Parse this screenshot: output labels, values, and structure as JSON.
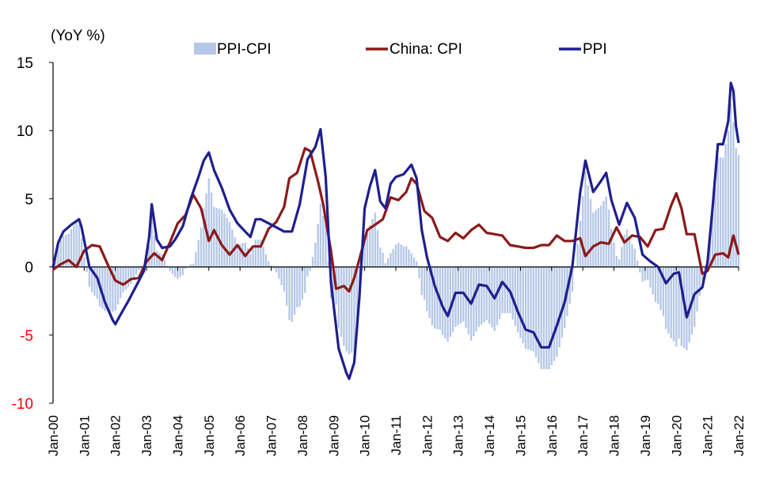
{
  "chart_data": {
    "type": "line",
    "unit_label": "(YoY %)",
    "x_start": "2000-01",
    "x_end": "2022-01",
    "ylim": [
      -10,
      15
    ],
    "y_ticks": [
      "15",
      "10",
      "5",
      "0",
      "-5",
      "-10"
    ],
    "y_tick_values": [
      15,
      10,
      5,
      0,
      -5,
      -10
    ],
    "negative_tick_color": "#ff0000",
    "x_ticks": [
      "Jan-00",
      "Jan-01",
      "Jan-02",
      "Jan-03",
      "Jan-04",
      "Jan-05",
      "Jan-06",
      "Jan-07",
      "Jan-08",
      "Jan-09",
      "Jan-10",
      "Jan-11",
      "Jan-12",
      "Jan-13",
      "Jan-14",
      "Jan-15",
      "Jan-16",
      "Jan-17",
      "Jan-18",
      "Jan-19",
      "Jan-20",
      "Jan-21",
      "Jan-22"
    ],
    "legend": [
      {
        "label": "PPI-CPI",
        "kind": "bar",
        "color": "#b4c7e7"
      },
      {
        "label": "China: CPI",
        "kind": "line",
        "color": "#8b1a1a"
      },
      {
        "label": "PPI",
        "kind": "line",
        "color": "#1f1f8f"
      }
    ],
    "series": [
      {
        "name": "PPI",
        "color": "#1f1f8f",
        "points": [
          [
            "2000-01",
            0
          ],
          [
            "2000-03",
            1.8
          ],
          [
            "2000-05",
            2.6
          ],
          [
            "2000-08",
            3.1
          ],
          [
            "2000-11",
            3.5
          ],
          [
            "2000-12",
            2.9
          ],
          [
            "2001-03",
            0
          ],
          [
            "2001-06",
            -0.8
          ],
          [
            "2001-09",
            -2.6
          ],
          [
            "2001-12",
            -3.9
          ],
          [
            "2002-01",
            -4.2
          ],
          [
            "2002-03",
            -3.5
          ],
          [
            "2002-06",
            -2.5
          ],
          [
            "2002-09",
            -1.4
          ],
          [
            "2002-12",
            -0.3
          ],
          [
            "2003-02",
            2.2
          ],
          [
            "2003-03",
            4.6
          ],
          [
            "2003-05",
            2.0
          ],
          [
            "2003-07",
            1.4
          ],
          [
            "2003-10",
            1.5
          ],
          [
            "2003-12",
            2.0
          ],
          [
            "2004-03",
            3.0
          ],
          [
            "2004-06",
            5.0
          ],
          [
            "2004-09",
            6.6
          ],
          [
            "2004-11",
            7.8
          ],
          [
            "2005-01",
            8.4
          ],
          [
            "2005-03",
            7.1
          ],
          [
            "2005-06",
            5.8
          ],
          [
            "2005-09",
            4.2
          ],
          [
            "2005-12",
            3.2
          ],
          [
            "2006-03",
            2.6
          ],
          [
            "2006-05",
            2.2
          ],
          [
            "2006-07",
            3.5
          ],
          [
            "2006-09",
            3.5
          ],
          [
            "2006-12",
            3.2
          ],
          [
            "2007-03",
            2.9
          ],
          [
            "2007-06",
            2.6
          ],
          [
            "2007-09",
            2.6
          ],
          [
            "2007-12",
            4.6
          ],
          [
            "2008-03",
            7.9
          ],
          [
            "2008-06",
            8.8
          ],
          [
            "2008-08",
            10.1
          ],
          [
            "2008-10",
            6.6
          ],
          [
            "2008-12",
            -1.1
          ],
          [
            "2009-03",
            -6.0
          ],
          [
            "2009-06",
            -7.8
          ],
          [
            "2009-07",
            -8.2
          ],
          [
            "2009-09",
            -7.0
          ],
          [
            "2009-11",
            -2.1
          ],
          [
            "2010-01",
            4.3
          ],
          [
            "2010-03",
            5.9
          ],
          [
            "2010-05",
            7.1
          ],
          [
            "2010-07",
            4.8
          ],
          [
            "2010-09",
            4.3
          ],
          [
            "2010-11",
            6.1
          ],
          [
            "2011-01",
            6.6
          ],
          [
            "2011-04",
            6.8
          ],
          [
            "2011-07",
            7.5
          ],
          [
            "2011-09",
            6.5
          ],
          [
            "2011-11",
            2.7
          ],
          [
            "2012-01",
            0.7
          ],
          [
            "2012-04",
            -1.4
          ],
          [
            "2012-07",
            -2.9
          ],
          [
            "2012-09",
            -3.6
          ],
          [
            "2012-12",
            -1.9
          ],
          [
            "2013-03",
            -1.9
          ],
          [
            "2013-06",
            -2.7
          ],
          [
            "2013-09",
            -1.3
          ],
          [
            "2013-12",
            -1.4
          ],
          [
            "2014-03",
            -2.3
          ],
          [
            "2014-06",
            -1.1
          ],
          [
            "2014-09",
            -1.8
          ],
          [
            "2014-12",
            -3.3
          ],
          [
            "2015-03",
            -4.6
          ],
          [
            "2015-06",
            -4.8
          ],
          [
            "2015-09",
            -5.9
          ],
          [
            "2015-12",
            -5.9
          ],
          [
            "2016-03",
            -4.3
          ],
          [
            "2016-06",
            -2.6
          ],
          [
            "2016-09",
            0.1
          ],
          [
            "2016-12",
            5.5
          ],
          [
            "2017-02",
            7.8
          ],
          [
            "2017-05",
            5.5
          ],
          [
            "2017-08",
            6.3
          ],
          [
            "2017-10",
            6.9
          ],
          [
            "2017-12",
            4.9
          ],
          [
            "2018-03",
            3.1
          ],
          [
            "2018-06",
            4.7
          ],
          [
            "2018-09",
            3.6
          ],
          [
            "2018-12",
            0.9
          ],
          [
            "2019-03",
            0.4
          ],
          [
            "2019-06",
            0
          ],
          [
            "2019-09",
            -1.2
          ],
          [
            "2019-12",
            -0.5
          ],
          [
            "2020-02",
            -0.4
          ],
          [
            "2020-05",
            -3.7
          ],
          [
            "2020-08",
            -2.0
          ],
          [
            "2020-11",
            -1.5
          ],
          [
            "2021-01",
            0.3
          ],
          [
            "2021-03",
            4.4
          ],
          [
            "2021-05",
            9.0
          ],
          [
            "2021-07",
            9.0
          ],
          [
            "2021-09",
            10.7
          ],
          [
            "2021-10",
            13.5
          ],
          [
            "2021-11",
            12.9
          ],
          [
            "2021-12",
            10.3
          ],
          [
            "2022-01",
            9.1
          ]
        ]
      },
      {
        "name": "China: CPI",
        "color": "#8b1a1a",
        "points": [
          [
            "2000-01",
            -0.2
          ],
          [
            "2000-04",
            0.2
          ],
          [
            "2000-07",
            0.5
          ],
          [
            "2000-10",
            0.0
          ],
          [
            "2001-01",
            1.2
          ],
          [
            "2001-04",
            1.6
          ],
          [
            "2001-07",
            1.5
          ],
          [
            "2001-10",
            0.2
          ],
          [
            "2002-01",
            -1.0
          ],
          [
            "2002-04",
            -1.3
          ],
          [
            "2002-07",
            -0.9
          ],
          [
            "2002-10",
            -0.8
          ],
          [
            "2003-01",
            0.4
          ],
          [
            "2003-04",
            1.0
          ],
          [
            "2003-07",
            0.5
          ],
          [
            "2003-10",
            1.8
          ],
          [
            "2004-01",
            3.2
          ],
          [
            "2004-04",
            3.8
          ],
          [
            "2004-07",
            5.3
          ],
          [
            "2004-10",
            4.3
          ],
          [
            "2005-01",
            1.9
          ],
          [
            "2005-03",
            2.7
          ],
          [
            "2005-06",
            1.6
          ],
          [
            "2005-09",
            0.9
          ],
          [
            "2005-12",
            1.6
          ],
          [
            "2006-03",
            0.8
          ],
          [
            "2006-06",
            1.5
          ],
          [
            "2006-09",
            1.5
          ],
          [
            "2006-12",
            2.8
          ],
          [
            "2007-03",
            3.3
          ],
          [
            "2007-06",
            4.4
          ],
          [
            "2007-08",
            6.5
          ],
          [
            "2007-11",
            6.9
          ],
          [
            "2008-02",
            8.7
          ],
          [
            "2008-04",
            8.5
          ],
          [
            "2008-07",
            6.3
          ],
          [
            "2008-09",
            4.6
          ],
          [
            "2008-12",
            1.2
          ],
          [
            "2009-02",
            -1.6
          ],
          [
            "2009-05",
            -1.4
          ],
          [
            "2009-07",
            -1.8
          ],
          [
            "2009-09",
            -0.8
          ],
          [
            "2009-11",
            0.6
          ],
          [
            "2010-02",
            2.7
          ],
          [
            "2010-05",
            3.1
          ],
          [
            "2010-08",
            3.5
          ],
          [
            "2010-11",
            5.1
          ],
          [
            "2011-02",
            4.9
          ],
          [
            "2011-05",
            5.5
          ],
          [
            "2011-07",
            6.5
          ],
          [
            "2011-09",
            6.1
          ],
          [
            "2011-12",
            4.1
          ],
          [
            "2012-03",
            3.6
          ],
          [
            "2012-06",
            2.2
          ],
          [
            "2012-09",
            1.9
          ],
          [
            "2012-12",
            2.5
          ],
          [
            "2013-03",
            2.1
          ],
          [
            "2013-06",
            2.7
          ],
          [
            "2013-09",
            3.1
          ],
          [
            "2013-12",
            2.5
          ],
          [
            "2014-03",
            2.4
          ],
          [
            "2014-06",
            2.3
          ],
          [
            "2014-09",
            1.6
          ],
          [
            "2014-12",
            1.5
          ],
          [
            "2015-03",
            1.4
          ],
          [
            "2015-06",
            1.4
          ],
          [
            "2015-09",
            1.6
          ],
          [
            "2015-12",
            1.6
          ],
          [
            "2016-03",
            2.3
          ],
          [
            "2016-06",
            1.9
          ],
          [
            "2016-09",
            1.9
          ],
          [
            "2016-12",
            2.1
          ],
          [
            "2017-02",
            0.8
          ],
          [
            "2017-05",
            1.5
          ],
          [
            "2017-08",
            1.8
          ],
          [
            "2017-11",
            1.7
          ],
          [
            "2018-02",
            2.9
          ],
          [
            "2018-05",
            1.8
          ],
          [
            "2018-08",
            2.3
          ],
          [
            "2018-11",
            2.2
          ],
          [
            "2019-02",
            1.5
          ],
          [
            "2019-05",
            2.7
          ],
          [
            "2019-08",
            2.8
          ],
          [
            "2019-11",
            4.5
          ],
          [
            "2020-01",
            5.4
          ],
          [
            "2020-03",
            4.3
          ],
          [
            "2020-05",
            2.4
          ],
          [
            "2020-08",
            2.4
          ],
          [
            "2020-11",
            -0.5
          ],
          [
            "2021-01",
            -0.3
          ],
          [
            "2021-04",
            0.9
          ],
          [
            "2021-07",
            1.0
          ],
          [
            "2021-09",
            0.7
          ],
          [
            "2021-11",
            2.3
          ],
          [
            "2022-01",
            0.9
          ]
        ]
      },
      {
        "name": "PPI-CPI",
        "color": "#b4c7e7",
        "kind": "bar",
        "derived_from": [
          "PPI",
          "China: CPI"
        ]
      }
    ]
  }
}
